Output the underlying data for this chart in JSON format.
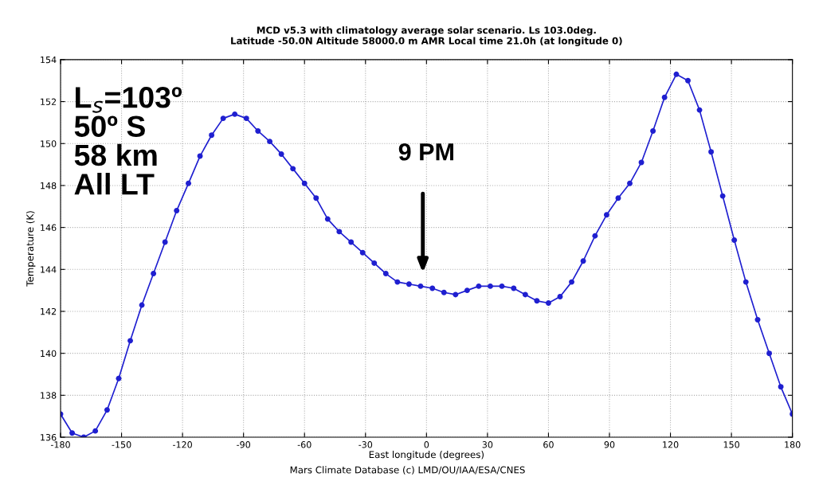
{
  "chart_data": {
    "type": "line",
    "title": "MCD v5.3 with climatology average solar scenario. Ls 103.0deg.\nLatitude -50.0N Altitude 58000.0 m AMR Local time 21.0h (at longitude 0)",
    "xlabel": "East longitude (degrees)",
    "ylabel": "Temperature (K)",
    "x": [
      -180,
      -174.3,
      -168.6,
      -162.9,
      -157.1,
      -151.4,
      -145.7,
      -140.0,
      -134.3,
      -128.6,
      -122.9,
      -117.1,
      -111.4,
      -105.7,
      -100.0,
      -94.3,
      -88.6,
      -82.9,
      -77.1,
      -71.4,
      -65.7,
      -60.0,
      -54.3,
      -48.6,
      -42.9,
      -37.1,
      -31.4,
      -25.7,
      -20.0,
      -14.3,
      -8.6,
      -2.9,
      2.9,
      8.6,
      14.3,
      20.0,
      25.7,
      31.4,
      37.1,
      42.9,
      48.6,
      54.3,
      60.0,
      65.7,
      71.4,
      77.1,
      82.9,
      88.6,
      94.3,
      100.0,
      105.7,
      111.4,
      117.1,
      122.9,
      128.6,
      134.3,
      140.0,
      145.7,
      151.4,
      157.1,
      162.9,
      168.6,
      174.3,
      180
    ],
    "series": [
      {
        "color": "#1f1fd0",
        "values": [
          137.1,
          136.2,
          136.0,
          136.3,
          137.3,
          138.8,
          140.6,
          142.3,
          143.8,
          145.3,
          146.8,
          148.1,
          149.4,
          150.4,
          151.2,
          151.4,
          151.2,
          150.6,
          150.1,
          149.5,
          148.8,
          148.1,
          147.4,
          146.4,
          145.8,
          145.3,
          144.8,
          144.3,
          143.8,
          143.4,
          143.3,
          143.2,
          143.1,
          142.9,
          142.8,
          143.0,
          143.2,
          143.2,
          143.2,
          143.1,
          142.8,
          142.5,
          142.4,
          142.7,
          143.4,
          144.4,
          145.6,
          146.6,
          147.4,
          148.1,
          149.1,
          150.6,
          152.2,
          153.3,
          153.0,
          151.6,
          149.6,
          147.5,
          145.4,
          143.4,
          141.6,
          140.0,
          138.4,
          137.1
        ]
      }
    ],
    "xlim": [
      -180,
      180
    ],
    "xticks": [
      -180,
      -150,
      -120,
      -90,
      -60,
      -30,
      0,
      30,
      60,
      90,
      120,
      150,
      180
    ],
    "ylim": [
      136,
      154
    ],
    "yticks": [
      136,
      138,
      140,
      142,
      144,
      146,
      148,
      150,
      152,
      154
    ],
    "grid": true,
    "marker": "circle",
    "line_style": "solid",
    "annotations": [
      "L$_{s}$=103º\n50º S\n58 km\nAll LT",
      "9 PM",
      "Mars Climate Database (c) LMD/OU/IAA/ESA/CNES"
    ]
  }
}
